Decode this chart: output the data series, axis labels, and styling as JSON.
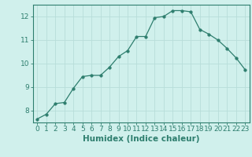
{
  "x": [
    0,
    1,
    2,
    3,
    4,
    5,
    6,
    7,
    8,
    9,
    10,
    11,
    12,
    13,
    14,
    15,
    16,
    17,
    18,
    19,
    20,
    21,
    22,
    23
  ],
  "y": [
    7.65,
    7.85,
    8.3,
    8.35,
    8.95,
    9.45,
    9.5,
    9.5,
    9.85,
    10.3,
    10.55,
    11.15,
    11.15,
    11.95,
    12.0,
    12.25,
    12.25,
    12.2,
    11.45,
    11.25,
    11.0,
    10.65,
    10.25,
    9.75
  ],
  "line_color": "#2e7e6e",
  "marker": "o",
  "marker_size": 2.5,
  "bg_color": "#d0f0ec",
  "grid_color": "#b8ddd9",
  "axis_color": "#2e7e6e",
  "xlabel": "Humidex (Indice chaleur)",
  "xlabel_fontsize": 7.5,
  "tick_fontsize": 6.5,
  "ylim": [
    7.5,
    12.5
  ],
  "yticks": [
    8,
    9,
    10,
    11,
    12
  ],
  "xticks": [
    0,
    1,
    2,
    3,
    4,
    5,
    6,
    7,
    8,
    9,
    10,
    11,
    12,
    13,
    14,
    15,
    16,
    17,
    18,
    19,
    20,
    21,
    22,
    23
  ]
}
